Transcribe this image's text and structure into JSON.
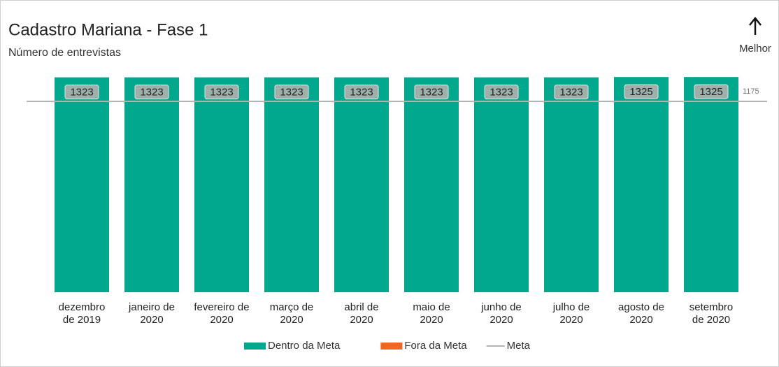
{
  "chart_data": {
    "type": "bar",
    "title": "Cadastro Mariana - Fase 1",
    "subtitle": "Número de entrevistas",
    "annotation": "Melhor",
    "categories": [
      "dezembro de 2019",
      "janeiro de 2020",
      "fevereiro de 2020",
      "março de 2020",
      "abril de 2020",
      "maio de 2020",
      "junho de 2020",
      "julho de 2020",
      "agosto de 2020",
      "setembro de 2020"
    ],
    "series": [
      {
        "name": "Dentro da Meta",
        "color": "#01a88d",
        "values": [
          1323,
          1323,
          1323,
          1323,
          1323,
          1323,
          1323,
          1323,
          1325,
          1325
        ]
      },
      {
        "name": "Fora da Meta",
        "color": "#f26522",
        "values": [
          null,
          null,
          null,
          null,
          null,
          null,
          null,
          null,
          null,
          null
        ]
      }
    ],
    "meta": {
      "name": "Meta",
      "value": 1175,
      "color": "#b3b3b3"
    },
    "ylim": [
      0,
      1330
    ]
  }
}
